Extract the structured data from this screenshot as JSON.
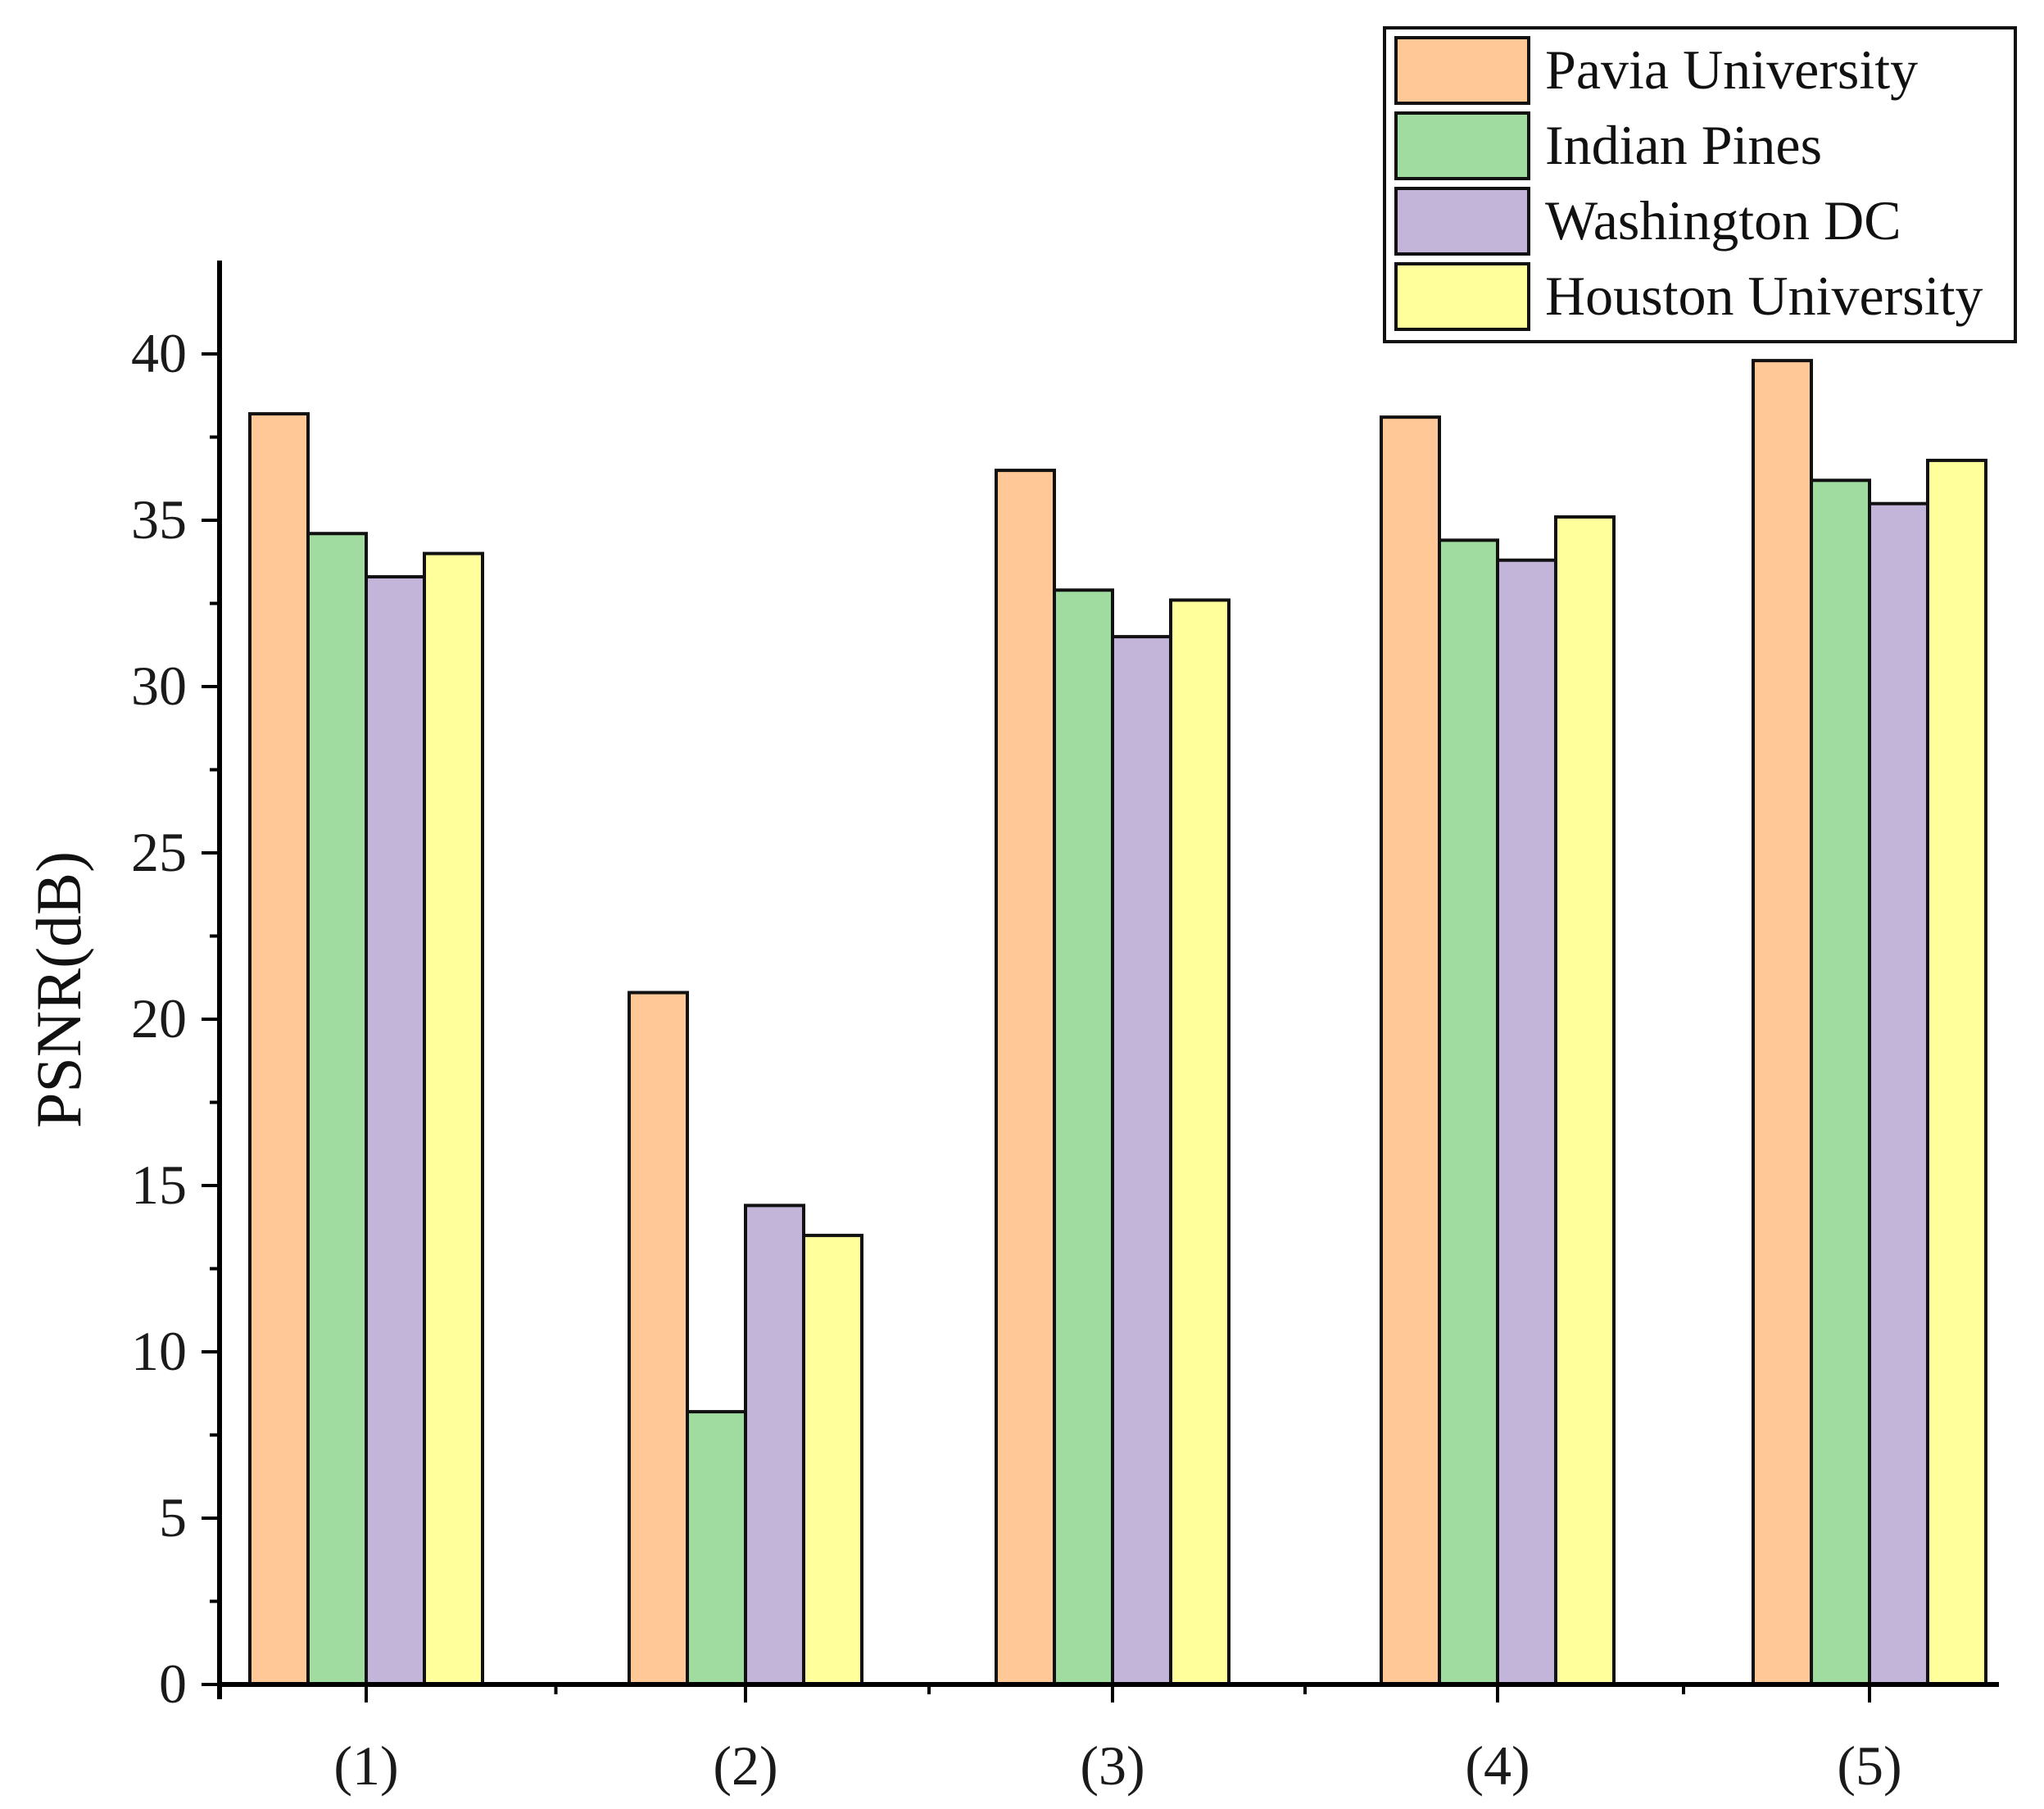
{
  "chart_data": {
    "type": "bar",
    "title": "",
    "xlabel": "",
    "ylabel": "PSNR(dB)",
    "categories": [
      "(1)",
      "(2)",
      "(3)",
      "(4)",
      "(5)"
    ],
    "ylim": [
      0,
      42
    ],
    "yticks": [
      0,
      5,
      10,
      15,
      20,
      25,
      30,
      35,
      40
    ],
    "grid": false,
    "legend_position": "top-right",
    "series": [
      {
        "name": "Pavia University",
        "color": "#FFC896",
        "values": [
          38.2,
          20.8,
          36.5,
          38.1,
          39.8
        ]
      },
      {
        "name": "Indian Pines",
        "color": "#A0DBA0",
        "values": [
          34.6,
          8.2,
          32.9,
          34.4,
          36.2
        ]
      },
      {
        "name": "Washington DC",
        "color": "#C3B4DA",
        "values": [
          33.3,
          14.4,
          31.5,
          33.8,
          35.5
        ]
      },
      {
        "name": "Houston University",
        "color": "#FFFF9B",
        "values": [
          34.0,
          13.5,
          32.6,
          35.1,
          36.8
        ]
      }
    ]
  }
}
